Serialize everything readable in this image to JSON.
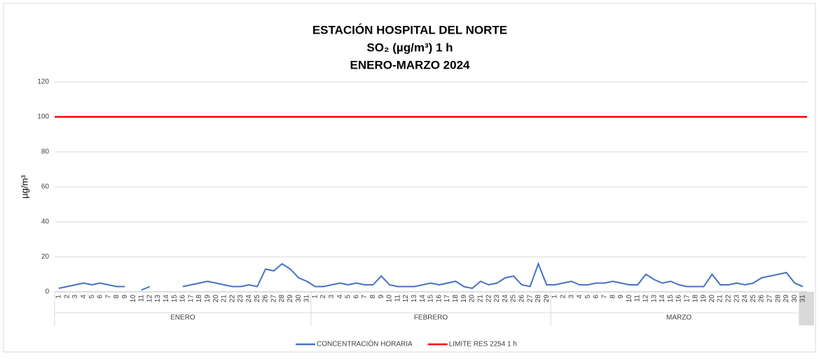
{
  "chart_data": {
    "type": "line",
    "title": [
      "ESTACIÓN HOSPITAL DEL NORTE",
      "SO₂ (µg/m³) 1 h",
      "ENERO-MARZO 2024"
    ],
    "ylabel": "µg/m³",
    "ylim": [
      0,
      120
    ],
    "yticks": [
      0,
      20,
      40,
      60,
      80,
      100,
      120
    ],
    "grid": true,
    "months": [
      {
        "name": "ENERO",
        "days": [
          1,
          2,
          3,
          4,
          5,
          6,
          7,
          8,
          9,
          10,
          11,
          12,
          13,
          14,
          15,
          16,
          17,
          18,
          19,
          20,
          21,
          22,
          23,
          24,
          25,
          26,
          27,
          28,
          29,
          30,
          31
        ]
      },
      {
        "name": "FEBRERO",
        "days": [
          1,
          2,
          3,
          4,
          5,
          6,
          7,
          8,
          9,
          10,
          11,
          12,
          13,
          14,
          15,
          16,
          17,
          18,
          19,
          20,
          21,
          22,
          23,
          24,
          25,
          26,
          27,
          28,
          29
        ]
      },
      {
        "name": "MARZO",
        "days": [
          1,
          2,
          3,
          4,
          5,
          6,
          7,
          8,
          9,
          10,
          11,
          12,
          13,
          14,
          15,
          16,
          17,
          18,
          19,
          20,
          21,
          22,
          23,
          24,
          25,
          26,
          27,
          28,
          29,
          30,
          31
        ]
      }
    ],
    "series": [
      {
        "name": "CONCENTRACIÓN HORARIA",
        "color": "#4472c4",
        "values": [
          [
            2,
            3,
            4,
            5,
            4,
            5,
            4,
            3,
            3,
            null,
            1,
            3,
            null,
            null,
            null,
            3,
            4,
            5,
            6,
            5,
            4,
            3,
            3,
            4,
            3,
            13,
            12,
            16,
            13,
            8,
            6
          ],
          [
            3,
            3,
            4,
            5,
            4,
            5,
            4,
            4,
            9,
            4,
            3,
            3,
            3,
            4,
            5,
            4,
            5,
            6,
            3,
            2,
            6,
            4,
            5,
            8,
            9,
            4,
            3,
            16,
            4
          ],
          [
            4,
            5,
            6,
            4,
            4,
            5,
            5,
            6,
            5,
            4,
            4,
            10,
            7,
            5,
            6,
            4,
            3,
            3,
            3,
            10,
            4,
            4,
            5,
            4,
            5,
            8,
            9,
            10,
            11,
            5,
            3
          ]
        ]
      },
      {
        "name": "LIMITE RES 2254 1 h",
        "color": "#ff0000",
        "value": 100
      }
    ],
    "legend": "bottom"
  }
}
